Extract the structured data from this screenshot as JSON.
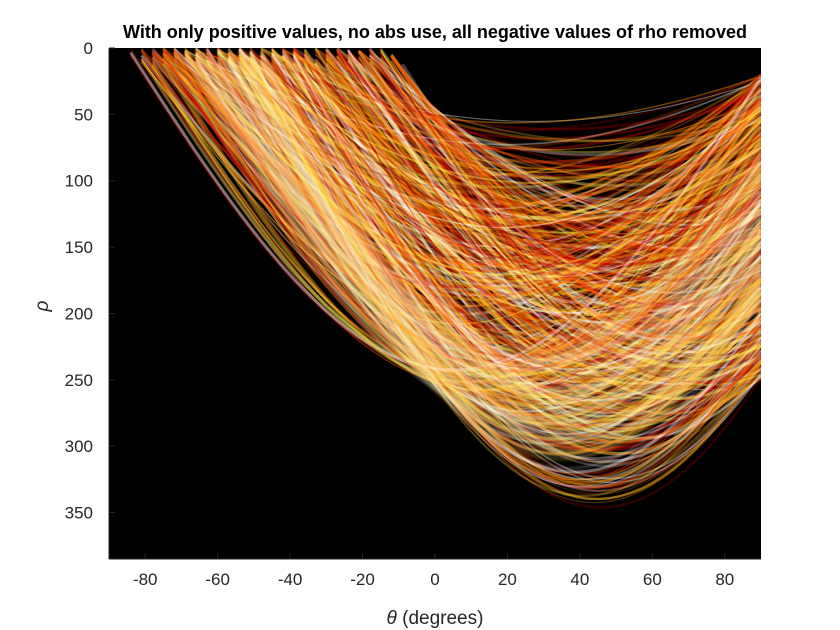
{
  "chart_data": {
    "type": "heatmap",
    "title": "With only positive values, no abs use, all negative values of rho removed",
    "xlabel_symbol": "θ",
    "xlabel_text": " (degrees)",
    "ylabel": "ρ",
    "xlim": [
      -90,
      90
    ],
    "ylim": [
      0,
      385
    ],
    "y_reversed": true,
    "x_ticks": [
      -80,
      -60,
      -40,
      -20,
      0,
      20,
      40,
      60,
      80
    ],
    "y_ticks": [
      0,
      50,
      100,
      150,
      200,
      250,
      300,
      350
    ],
    "colormap": "hot",
    "background_color": "#000000",
    "color_stops": [
      "#000000",
      "#6b0000",
      "#c80000",
      "#ff4a00",
      "#ff9a00",
      "#ffe63c",
      "#ffffff"
    ],
    "grid": false
  }
}
